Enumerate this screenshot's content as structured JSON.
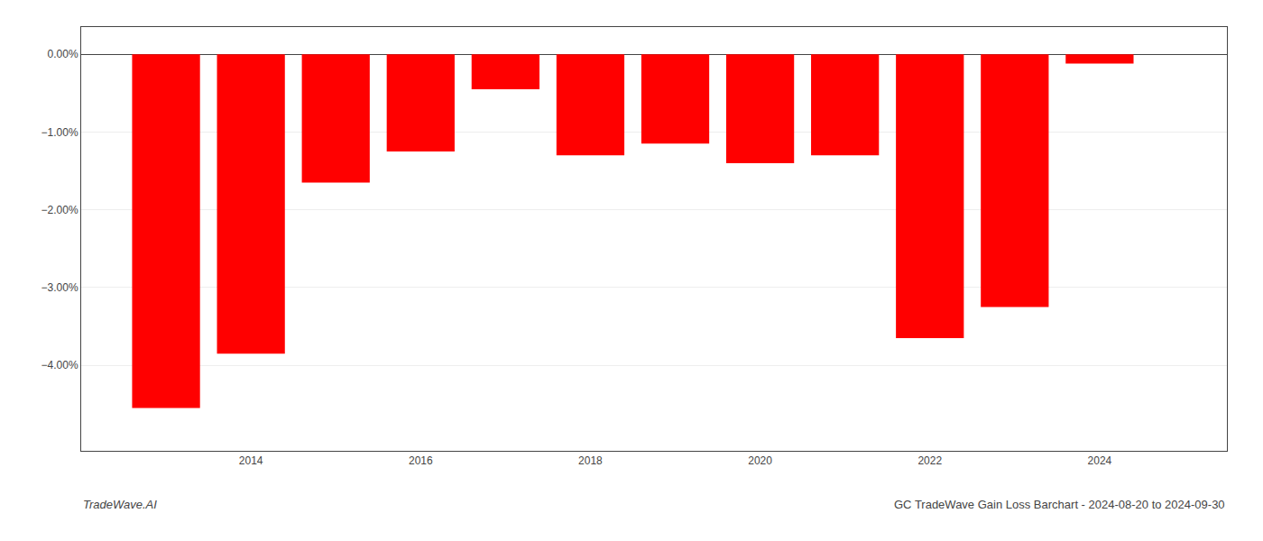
{
  "chart_data": {
    "type": "bar",
    "x": [
      2013,
      2014,
      2015,
      2016,
      2017,
      2018,
      2019,
      2020,
      2021,
      2022,
      2023,
      2024
    ],
    "values": [
      -4.55,
      -3.85,
      -1.65,
      -1.25,
      -0.45,
      -1.3,
      -1.15,
      -1.4,
      -1.3,
      -3.65,
      -3.25,
      -0.12
    ],
    "color": "#ff0000",
    "xlim": [
      2012.0,
      2025.5
    ],
    "xticks": [
      2014,
      2016,
      2018,
      2020,
      2022,
      2024
    ],
    "ylim": [
      -5.1,
      0.35
    ],
    "yticks": [
      {
        "value": 0.0,
        "label": "0.00%"
      },
      {
        "value": -1.0,
        "label": "−1.00%"
      },
      {
        "value": -2.0,
        "label": "−2.00%"
      },
      {
        "value": -3.0,
        "label": "−3.00%"
      },
      {
        "value": -4.0,
        "label": "−4.00%"
      }
    ],
    "grid": "y",
    "annotations": [
      "TradeWave.AI",
      "GC TradeWave Gain Loss Barchart - 2024-08-20 to 2024-09-30"
    ]
  }
}
